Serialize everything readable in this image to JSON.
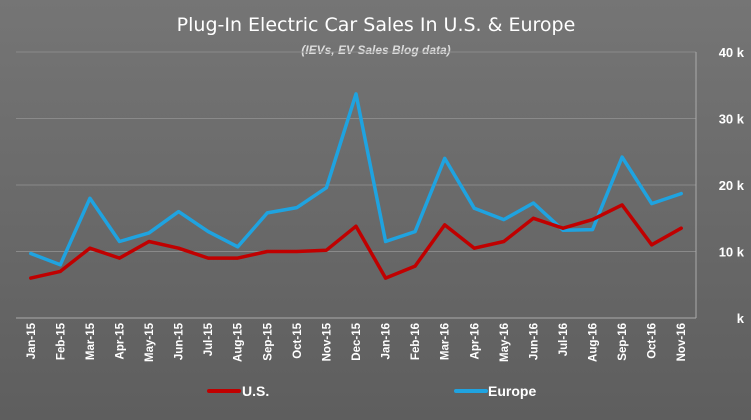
{
  "chart_data": {
    "type": "line",
    "title": "Plug-In Electric Car Sales In U.S. & Europe",
    "subtitle": "(IEVs, EV Sales Blog data)",
    "categories": [
      "Jan-15",
      "Feb-15",
      "Mar-15",
      "Apr-15",
      "May-15",
      "Jun-15",
      "Jul-15",
      "Aug-15",
      "Sep-15",
      "Oct-15",
      "Nov-15",
      "Dec-15",
      "Jan-16",
      "Feb-16",
      "Mar-16",
      "Apr-16",
      "May-16",
      "Jun-16",
      "Jul-16",
      "Aug-16",
      "Sep-16",
      "Oct-16",
      "Nov-16"
    ],
    "series": [
      {
        "name": "U.S.",
        "color": "#c00000",
        "values": [
          6000,
          7000,
          10500,
          9000,
          11500,
          10500,
          9000,
          9000,
          10000,
          10000,
          10200,
          13800,
          6000,
          7800,
          14000,
          10500,
          11500,
          15000,
          13500,
          14800,
          17000,
          11000,
          13500
        ]
      },
      {
        "name": "Europe",
        "color": "#1fa3e0",
        "values": [
          9700,
          8000,
          18000,
          11500,
          12800,
          16000,
          13000,
          10700,
          15800,
          16600,
          19600,
          33700,
          11500,
          13000,
          24000,
          16500,
          14800,
          17300,
          13200,
          13300,
          24200,
          17200,
          18700
        ]
      }
    ],
    "y_tick_labels": [
      "k",
      "10 k",
      "20 k",
      "30 k",
      "40 k"
    ],
    "y_tick_values": [
      0,
      10000,
      20000,
      30000,
      40000
    ],
    "ylim": [
      0,
      40000
    ],
    "y_axis_side": "right",
    "grid": true,
    "legend_position": "bottom"
  }
}
